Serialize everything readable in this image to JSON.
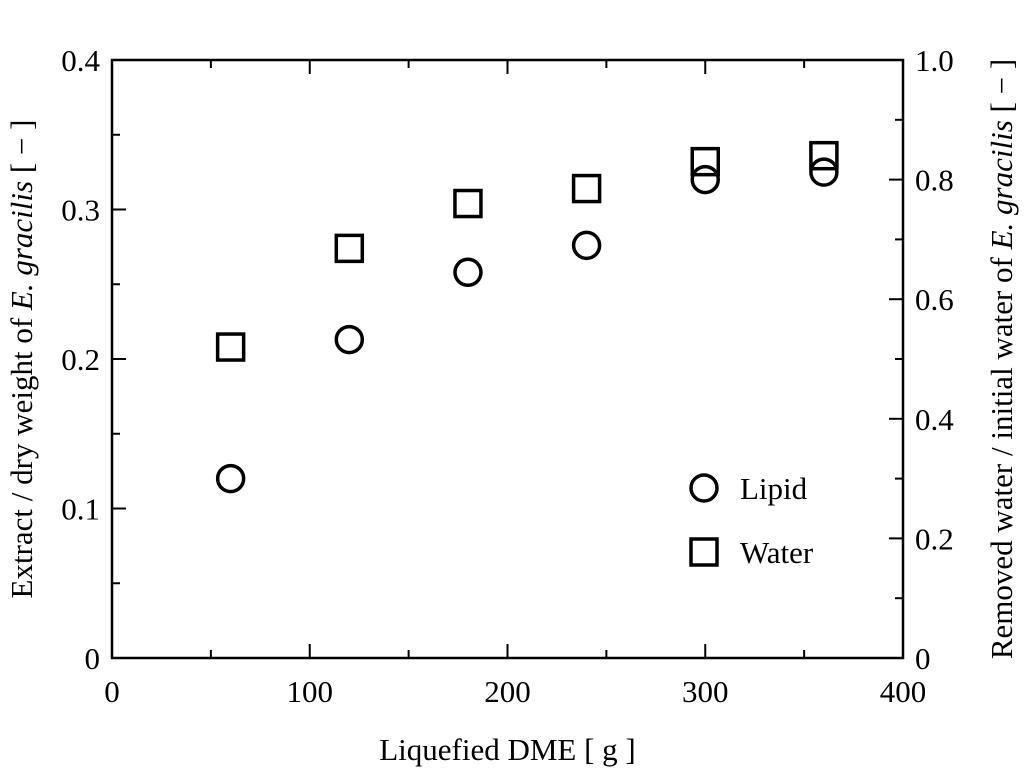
{
  "chart_data": {
    "type": "scatter",
    "title": "",
    "xlabel": "Liquefied DME [ g ]",
    "ylabel_left_parts": [
      "Extract / dry weight of ",
      "E. gracilis",
      " [ − ]"
    ],
    "ylabel_right_parts": [
      "Removed water / initial water of ",
      "E. gracilis",
      " [ − ]"
    ],
    "xlim": [
      0,
      400
    ],
    "ylim_left": [
      0,
      0.4
    ],
    "ylim_right": [
      0,
      1.0
    ],
    "x_ticks": [
      "0",
      "100",
      "200",
      "300",
      "400"
    ],
    "y_left_ticks": [
      "0",
      "0.1",
      "0.2",
      "0.3",
      "0.4"
    ],
    "y_right_ticks": [
      "0",
      "0.2",
      "0.4",
      "0.6",
      "0.8",
      "1.0"
    ],
    "grid": false,
    "legend_position": "bottom-right",
    "series": [
      {
        "name": "Lipid",
        "marker": "circle",
        "axis": "left",
        "x": [
          60,
          120,
          180,
          240,
          300,
          360
        ],
        "y": [
          0.12,
          0.213,
          0.258,
          0.276,
          0.32,
          0.325
        ]
      },
      {
        "name": "Water",
        "marker": "square",
        "axis": "right",
        "x": [
          60,
          120,
          180,
          240,
          300,
          360
        ],
        "y": [
          0.52,
          0.685,
          0.76,
          0.785,
          0.83,
          0.84
        ]
      }
    ]
  }
}
